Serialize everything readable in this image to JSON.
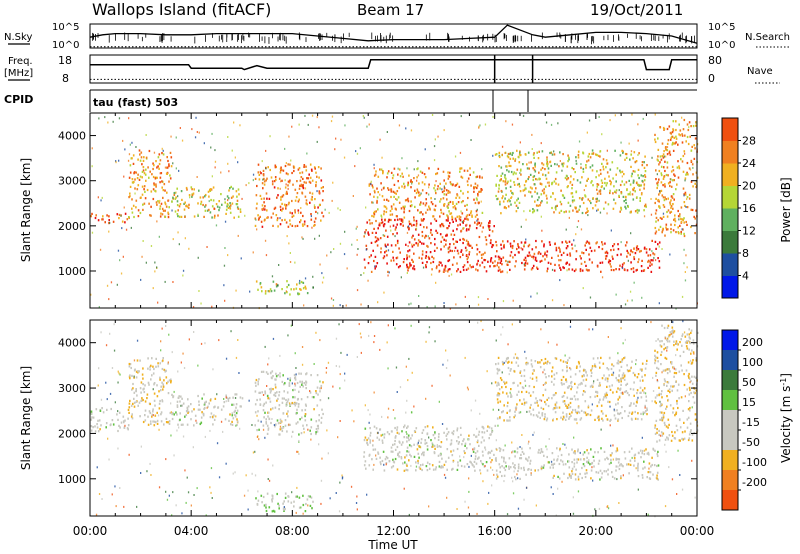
{
  "header": {
    "station": "Wallops Island (fitACF)",
    "beam": "Beam 17",
    "date": "19/Oct/2011"
  },
  "strip_labels": {
    "nsky": "N.Sky",
    "nsky_top": "10^5",
    "nsky_bottom": "10^0",
    "nsearch": "N.Search",
    "nsearch_top": "10^5",
    "nsearch_bottom": "10^0",
    "freq": "Freq.",
    "freq_unit": "[MHz]",
    "freq_top": "18",
    "freq_bottom": "8",
    "nave": "Nave",
    "nave_top": "80",
    "nave_bottom": "0",
    "cpid": "CPID",
    "cpid_value": "tau (fast) 503"
  },
  "colors": {
    "power": [
      "#0018e8",
      "#1e4fa0",
      "#3b7a3b",
      "#5fb05f",
      "#b5d636",
      "#f0b020",
      "#f08020",
      "#f05010",
      "#e81010"
    ],
    "velocity": [
      "#e81010",
      "#f05010",
      "#f08020",
      "#f0b020",
      "#c8c8c0",
      "#c8c8c0",
      "#60c040",
      "#3b7a3b",
      "#1e4fa0",
      "#0018e8"
    ]
  },
  "chart_data": [
    {
      "type": "line",
      "title": "N.Sky / N.Search",
      "xlabel": "",
      "ylabel": "N.Sky",
      "x_hours": [
        0,
        0.5,
        1,
        2,
        3,
        4,
        5,
        6,
        7,
        8,
        9,
        10,
        11,
        12,
        13,
        14,
        15,
        16,
        16.5,
        17.5,
        18,
        19,
        20,
        21,
        22,
        23,
        24
      ],
      "series": [
        {
          "name": "N.Sky",
          "values": [
            0.45,
            0.55,
            0.6,
            0.6,
            0.55,
            0.55,
            0.6,
            0.6,
            0.6,
            0.6,
            0.5,
            0.4,
            0.3,
            0.35,
            0.35,
            0.35,
            0.4,
            0.45,
            0.95,
            0.55,
            0.45,
            0.55,
            0.65,
            0.65,
            0.6,
            0.5,
            0.2
          ]
        },
        {
          "name": "N.Search",
          "values": [
            0.05,
            0.05,
            0.05,
            0.05,
            0.05,
            0.05,
            0.05,
            0.05,
            0.05,
            0.05,
            0.05,
            0.05,
            0.05,
            0.05,
            0.05,
            0.05,
            0.05,
            0.05,
            0.05,
            0.05,
            0.05,
            0.05,
            0.05,
            0.05,
            0.05,
            0.05,
            0.05
          ]
        }
      ]
    },
    {
      "type": "line",
      "title": "Freq. / Nave",
      "ylabel": "Freq. [MHz]",
      "ylim": [
        8,
        18
      ],
      "x_hours": [
        0,
        3.9,
        4.0,
        6.0,
        6.1,
        6.6,
        7.0,
        11.0,
        11.1,
        21.9,
        22.0,
        22.9,
        23.0,
        24
      ],
      "series": [
        {
          "name": "Freq.",
          "values": [
            14.5,
            14.5,
            13.3,
            13.3,
            12.8,
            14.2,
            13.3,
            13.3,
            16.3,
            16.3,
            12.8,
            12.8,
            16.3,
            16.3
          ]
        },
        {
          "name": "Nave",
          "values": [
            9.3,
            9.3,
            9.3,
            9.3,
            9.3,
            9.3,
            9.3,
            9.3,
            9.3,
            9.3,
            9.3,
            9.3,
            9.3,
            9.3
          ]
        }
      ]
    },
    {
      "type": "heatmap",
      "title": "Power",
      "xlabel": "Time UT",
      "ylabel": "Slant Range [km]",
      "xlim": [
        0,
        24
      ],
      "ylim": [
        180,
        4500
      ],
      "x_ticks": [
        "00:00",
        "04:00",
        "08:00",
        "12:00",
        "16:00",
        "20:00",
        "00:00"
      ],
      "y_ticks": [
        "1000",
        "2000",
        "3000",
        "4000"
      ],
      "colorbar_label": "Power [dB]",
      "colorbar_ticks": [
        "4",
        "8",
        "12",
        "16",
        "20",
        "24",
        "28"
      ],
      "bands": [
        {
          "t0": 0,
          "t1": 1.5,
          "r0": 2050,
          "r1": 2300,
          "v": 26
        },
        {
          "t0": 1.5,
          "t1": 3.2,
          "r0": 2200,
          "r1": 3700,
          "v": 22
        },
        {
          "t0": 3.2,
          "t1": 6.0,
          "r0": 2200,
          "r1": 2900,
          "v": 18
        },
        {
          "t0": 6.5,
          "t1": 9.2,
          "r0": 2000,
          "r1": 3400,
          "v": 24
        },
        {
          "t0": 6.5,
          "t1": 8.8,
          "r0": 500,
          "r1": 800,
          "v": 16
        },
        {
          "t0": 10.8,
          "t1": 16.0,
          "r0": 1000,
          "r1": 2200,
          "v": 28
        },
        {
          "t0": 11.0,
          "t1": 15.5,
          "r0": 2200,
          "r1": 3300,
          "v": 22
        },
        {
          "t0": 16.0,
          "t1": 22.5,
          "r0": 1000,
          "r1": 1700,
          "v": 28
        },
        {
          "t0": 16.0,
          "t1": 22.0,
          "r0": 2300,
          "r1": 3700,
          "v": 18
        },
        {
          "t0": 22.3,
          "t1": 24.0,
          "r0": 1800,
          "r1": 4400,
          "v": 22
        }
      ]
    },
    {
      "type": "heatmap",
      "title": "Velocity",
      "xlabel": "Time UT",
      "ylabel": "Slant Range [km]",
      "xlim": [
        0,
        24
      ],
      "ylim": [
        180,
        4500
      ],
      "x_ticks": [
        "00:00",
        "04:00",
        "08:00",
        "12:00",
        "16:00",
        "20:00",
        "00:00"
      ],
      "y_ticks": [
        "1000",
        "2000",
        "3000",
        "4000"
      ],
      "colorbar_label": "Velocity [m s-1]",
      "colorbar_ticks": [
        "200",
        "100",
        "50",
        "15",
        "-15",
        "-50",
        "-100",
        "-200"
      ],
      "bands": [
        {
          "t0": 0,
          "t1": 1.5,
          "r0": 2050,
          "r1": 2600,
          "v": 0
        },
        {
          "t0": 1.5,
          "t1": 3.2,
          "r0": 2200,
          "r1": 3700,
          "v": -40
        },
        {
          "t0": 3.2,
          "t1": 6.0,
          "r0": 2200,
          "r1": 2900,
          "v": 0
        },
        {
          "t0": 6.5,
          "t1": 9.2,
          "r0": 2000,
          "r1": 3400,
          "v": 0
        },
        {
          "t0": 6.5,
          "t1": 8.8,
          "r0": 300,
          "r1": 700,
          "v": 30
        },
        {
          "t0": 10.8,
          "t1": 16.0,
          "r0": 1200,
          "r1": 2200,
          "v": 0
        },
        {
          "t0": 16.0,
          "t1": 22.5,
          "r0": 1000,
          "r1": 1700,
          "v": 0
        },
        {
          "t0": 16.0,
          "t1": 22.0,
          "r0": 2300,
          "r1": 3700,
          "v": -30
        },
        {
          "t0": 22.3,
          "t1": 24.0,
          "r0": 1800,
          "r1": 4400,
          "v": -40
        }
      ]
    }
  ],
  "axis": {
    "xlabel": "Time UT",
    "ylabel": "Slant Range [km]",
    "x_ticks": [
      "00:00",
      "04:00",
      "08:00",
      "12:00",
      "16:00",
      "20:00",
      "00:00"
    ],
    "y_ticks": [
      "1000",
      "2000",
      "3000",
      "4000"
    ]
  },
  "colorbars": {
    "power_label": "Power [dB]",
    "power_ticks": [
      "4",
      "8",
      "12",
      "16",
      "20",
      "24",
      "28"
    ],
    "velocity_label": "Velocity [m s",
    "velocity_label_sup": "-1",
    "velocity_label_end": "]",
    "velocity_ticks": [
      "200",
      "100",
      "50",
      "15",
      "-15",
      "-50",
      "-100",
      "-200"
    ]
  }
}
